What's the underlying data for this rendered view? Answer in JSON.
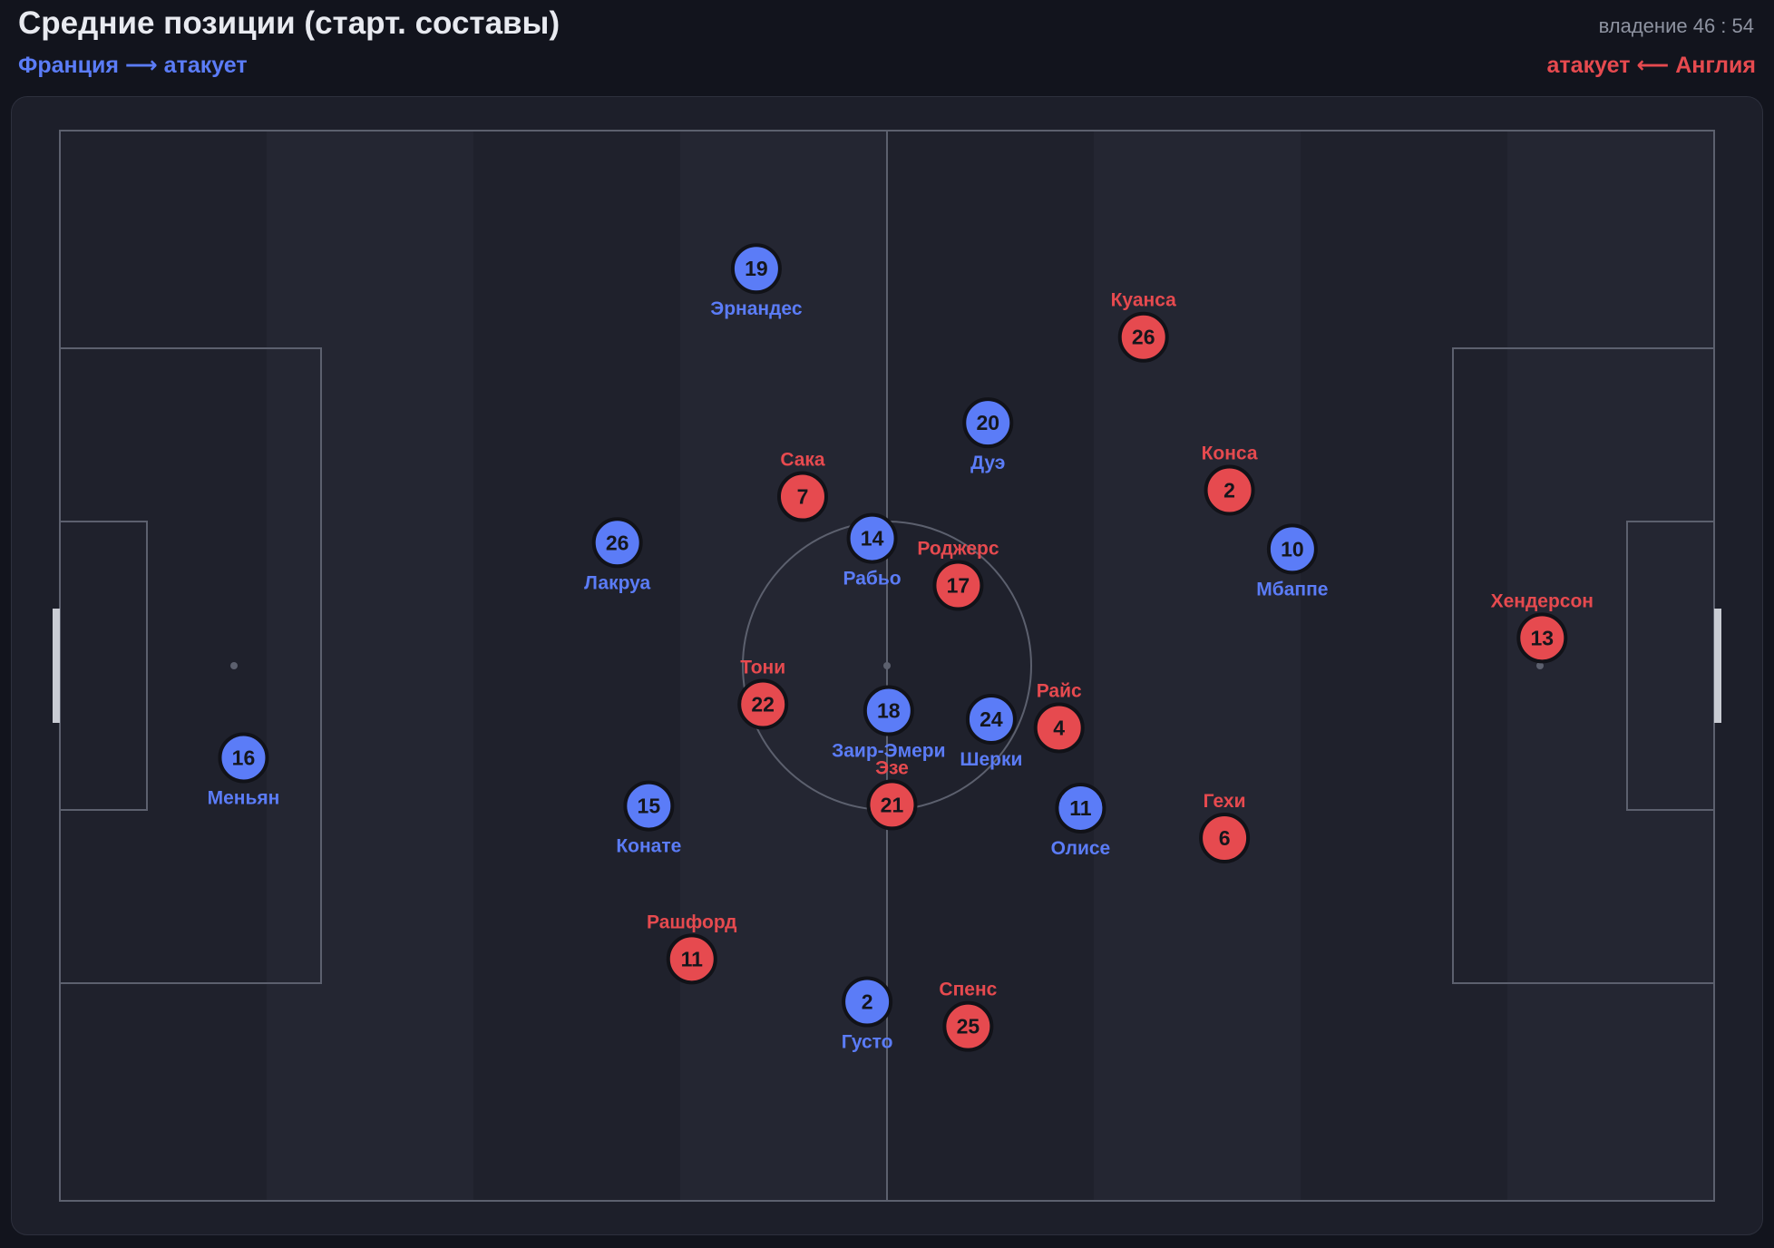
{
  "header": {
    "title": "Средние позиции (старт. составы)",
    "possession": "владение 46 : 54",
    "team_left": "Франция ⟶ атакует",
    "team_right": "атакует ⟵ Англия"
  },
  "colors": {
    "france": "#5b7cf7",
    "england": "#e64a4f",
    "pitch_line": "#5c606e",
    "pitch_dark": "#1f212c",
    "pitch_light": "#242632"
  },
  "players": [
    {
      "team": "france",
      "num": "19",
      "name": "Эрнандес",
      "label_pos": "below",
      "x": 42.1,
      "y": 12.9
    },
    {
      "team": "france",
      "num": "20",
      "name": "Дуэ",
      "label_pos": "below",
      "x": 56.1,
      "y": 27.3
    },
    {
      "team": "france",
      "num": "26",
      "name": "Лакруа",
      "label_pos": "below",
      "x": 33.7,
      "y": 38.5
    },
    {
      "team": "france",
      "num": "14",
      "name": "Рабьо",
      "label_pos": "below",
      "x": 49.1,
      "y": 38.1
    },
    {
      "team": "france",
      "num": "10",
      "name": "Мбаппе",
      "label_pos": "below",
      "x": 74.5,
      "y": 39.1
    },
    {
      "team": "france",
      "num": "18",
      "name": "Заир-Эмери",
      "label_pos": "below",
      "x": 50.1,
      "y": 54.2
    },
    {
      "team": "france",
      "num": "24",
      "name": "Шерки",
      "label_pos": "below",
      "x": 56.3,
      "y": 55.0
    },
    {
      "team": "france",
      "num": "16",
      "name": "Меньян",
      "label_pos": "below",
      "x": 11.1,
      "y": 58.6
    },
    {
      "team": "france",
      "num": "15",
      "name": "Конате",
      "label_pos": "below",
      "x": 35.6,
      "y": 63.1
    },
    {
      "team": "france",
      "num": "11",
      "name": "Олисе",
      "label_pos": "below",
      "x": 61.7,
      "y": 63.3
    },
    {
      "team": "france",
      "num": "2",
      "name": "Густо",
      "label_pos": "below",
      "x": 48.8,
      "y": 81.4
    },
    {
      "team": "england",
      "num": "26",
      "name": "Куанса",
      "label_pos": "above",
      "x": 65.5,
      "y": 19.3
    },
    {
      "team": "england",
      "num": "2",
      "name": "Конса",
      "label_pos": "above",
      "x": 70.7,
      "y": 33.6
    },
    {
      "team": "england",
      "num": "7",
      "name": "Сака",
      "label_pos": "above",
      "x": 44.9,
      "y": 34.2
    },
    {
      "team": "england",
      "num": "17",
      "name": "Роджерс",
      "label_pos": "above",
      "x": 54.3,
      "y": 42.5
    },
    {
      "team": "england",
      "num": "13",
      "name": "Хендерсон",
      "label_pos": "above",
      "x": 89.6,
      "y": 47.4
    },
    {
      "team": "england",
      "num": "22",
      "name": "Тони",
      "label_pos": "above",
      "x": 42.5,
      "y": 53.6
    },
    {
      "team": "england",
      "num": "4",
      "name": "Райс",
      "label_pos": "above",
      "x": 60.4,
      "y": 55.8
    },
    {
      "team": "england",
      "num": "21",
      "name": "Эзе",
      "label_pos": "above",
      "x": 50.3,
      "y": 63.0
    },
    {
      "team": "england",
      "num": "6",
      "name": "Гехи",
      "label_pos": "above",
      "x": 70.4,
      "y": 66.1
    },
    {
      "team": "england",
      "num": "11",
      "name": "Рашфорд",
      "label_pos": "above",
      "x": 38.2,
      "y": 77.4
    },
    {
      "team": "england",
      "num": "25",
      "name": "Спенс",
      "label_pos": "above",
      "x": 54.9,
      "y": 83.7
    }
  ]
}
